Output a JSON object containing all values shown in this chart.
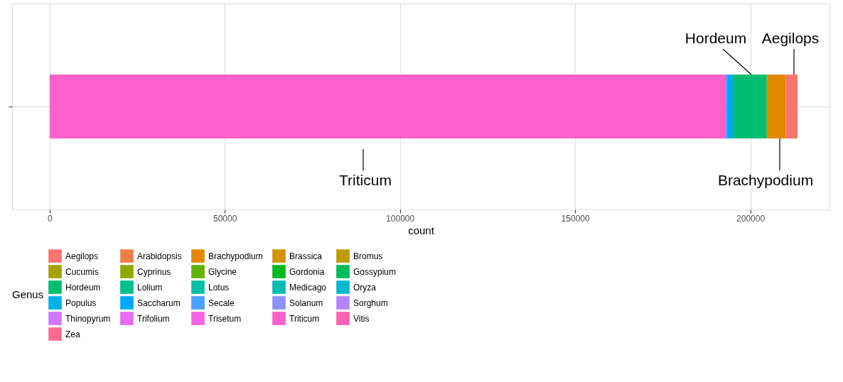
{
  "chart_data": {
    "type": "bar",
    "orientation": "horizontal",
    "stacked": true,
    "categories": [
      null
    ],
    "xlabel": "count",
    "legend_title": "Genus",
    "legend": "bottom",
    "grid": true,
    "xlim": [
      -10700,
      222600
    ],
    "xticks": [
      0,
      {
        "value": 50000,
        "label": "50000"
      },
      {
        "value": 100000,
        "label": "100000"
      },
      {
        "value": 150000,
        "label": "150000"
      },
      {
        "value": 200000,
        "label": "200000"
      }
    ],
    "series": [
      {
        "name": "Zea",
        "color": "#FF6C91",
        "values": [
          null
        ]
      },
      {
        "name": "Vitis",
        "color": "#FF62B2",
        "values": [
          null
        ]
      },
      {
        "name": "Triticum",
        "color": "#FF61CC",
        "values": [
          193000
        ]
      },
      {
        "name": "Trisetum",
        "color": "#F564E3",
        "values": [
          null
        ]
      },
      {
        "name": "Trifolium",
        "color": "#E76BF3",
        "values": [
          null
        ]
      },
      {
        "name": "Thinopyrum",
        "color": "#D177FF",
        "values": [
          null
        ]
      },
      {
        "name": "Sorghum",
        "color": "#B385FF",
        "values": [
          null
        ]
      },
      {
        "name": "Solanum",
        "color": "#8F91FF",
        "values": [
          null
        ]
      },
      {
        "name": "Secale",
        "color": "#4A9FFF",
        "values": [
          400
        ]
      },
      {
        "name": "Saccharum",
        "color": "#00A9FF",
        "values": [
          1600
        ]
      },
      {
        "name": "Populus",
        "color": "#00B2E5",
        "values": [
          null
        ]
      },
      {
        "name": "Oryza",
        "color": "#00B8CE",
        "values": [
          null
        ]
      },
      {
        "name": "Medicago",
        "color": "#00BCB4",
        "values": [
          null
        ]
      },
      {
        "name": "Lotus",
        "color": "#00BFA5",
        "values": [
          null
        ]
      },
      {
        "name": "Lolium",
        "color": "#00C08B",
        "values": [
          null
        ]
      },
      {
        "name": "Hordeum",
        "color": "#00BE70",
        "values": [
          9700
        ]
      },
      {
        "name": "Gossypium",
        "color": "#00BC59",
        "values": [
          null
        ]
      },
      {
        "name": "Gordonia",
        "color": "#00B81F",
        "values": [
          null
        ]
      },
      {
        "name": "Glycine",
        "color": "#64B200",
        "values": [
          null
        ]
      },
      {
        "name": "Cyprinus",
        "color": "#8CAB00",
        "values": [
          null
        ]
      },
      {
        "name": "Cucumis",
        "color": "#A8A200",
        "values": [
          null
        ]
      },
      {
        "name": "Bromus",
        "color": "#BF9B00",
        "values": [
          null
        ]
      },
      {
        "name": "Brassica",
        "color": "#D39200",
        "values": [
          null
        ]
      },
      {
        "name": "Brachypodium",
        "color": "#E38900",
        "values": [
          5400
        ]
      },
      {
        "name": "Arabidopsis",
        "color": "#EF7F49",
        "values": [
          null
        ]
      },
      {
        "name": "Aegilops",
        "color": "#F8766D",
        "values": [
          3400
        ]
      }
    ],
    "annotations": [
      "Triticum",
      "Hordeum",
      "Aegilops",
      "Brachypodium"
    ]
  }
}
